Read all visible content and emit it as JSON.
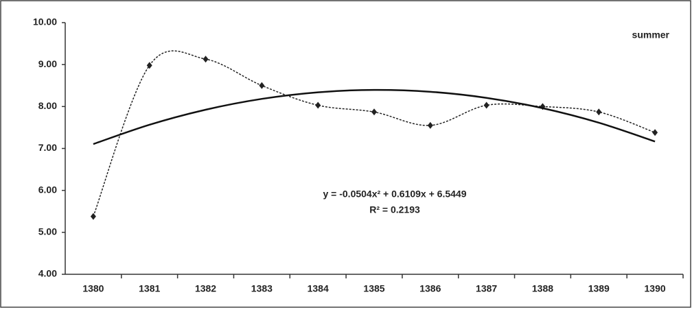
{
  "chart_data": {
    "type": "line",
    "categories": [
      "1380",
      "1381",
      "1382",
      "1383",
      "1384",
      "1385",
      "1386",
      "1387",
      "1388",
      "1389",
      "1390"
    ],
    "series": [
      {
        "name": "summer",
        "color": "#222222",
        "values": [
          5.38,
          8.98,
          9.13,
          8.5,
          8.03,
          7.87,
          7.55,
          8.03,
          8.0,
          7.87,
          7.38
        ]
      },
      {
        "color": "#111111",
        "values": [
          7.105,
          7.5651,
          7.924,
          8.1821,
          8.3394,
          8.3959,
          8.3516,
          8.2065,
          7.9606,
          7.6139,
          7.1664
        ]
      }
    ],
    "annotations": [
      "y = -0.0504x² + 0.6109x  + 6.5449",
      "R² = 0.2193"
    ],
    "ylim": [
      4,
      10
    ],
    "yticks": [
      {
        "value": 4,
        "label": "4.00"
      },
      {
        "value": 5,
        "label": "5.00"
      },
      {
        "value": 6,
        "label": "6.00"
      },
      {
        "value": 7,
        "label": "7.00"
      },
      {
        "value": 8,
        "label": "8.00"
      },
      {
        "value": 9,
        "label": "9.00"
      },
      {
        "value": 10,
        "label": "10.00"
      }
    ],
    "grid": false
  }
}
